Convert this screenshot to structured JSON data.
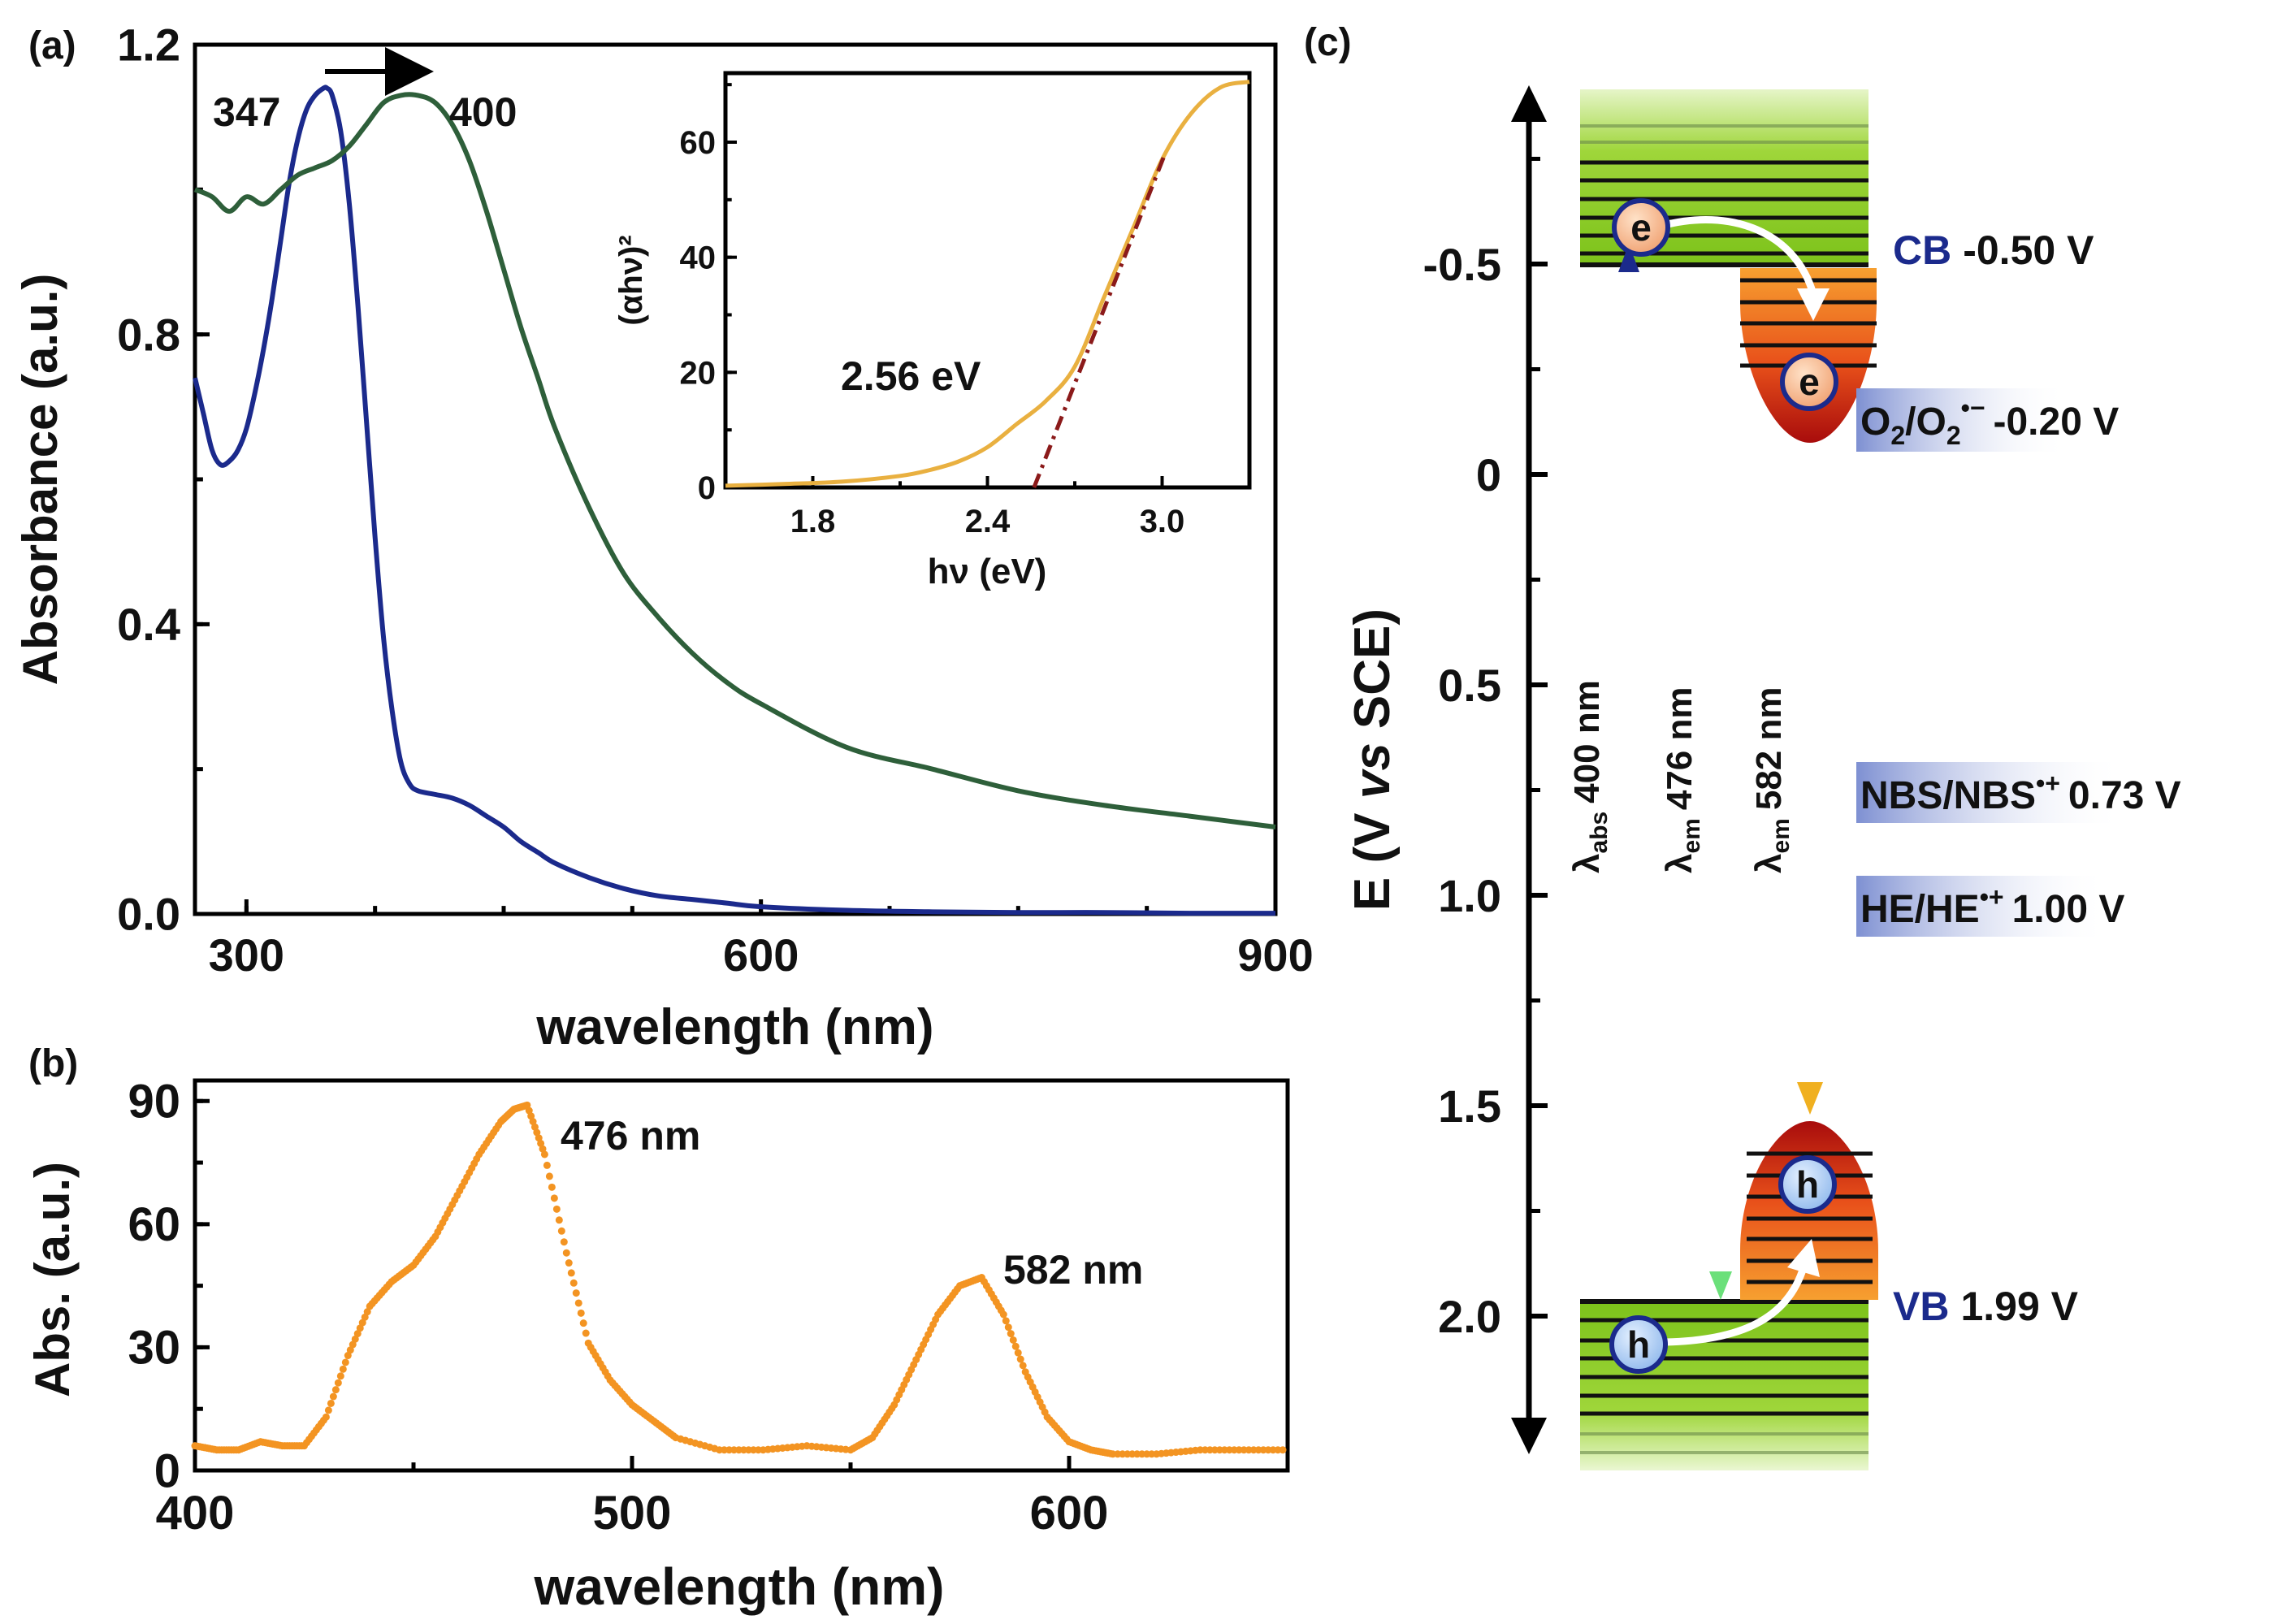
{
  "colors": {
    "blue": "#1b2a8c",
    "green": "#2e5f3a",
    "orange": "#f39422",
    "inset_curve": "#e9b040",
    "tangent": "#8b1a1a",
    "band_green": "#8fcf28",
    "band_orange": "#e8641c",
    "band_red": "#b01010",
    "label_blue": "#1b2a8c",
    "potential_fill": "#8fa0d8"
  },
  "chart_data": [
    {
      "id": "a",
      "panel_label": "(a)",
      "type": "line",
      "xlabel": "wavelength (nm)",
      "ylabel": "Absorbance (a.u.)",
      "xlim": [
        270,
        900
      ],
      "ylim": [
        0,
        1.2
      ],
      "xticks": [
        300,
        600,
        900
      ],
      "xtick_labels": [
        "300",
        "600",
        "900"
      ],
      "yticks": [
        0,
        0.4,
        0.8,
        1.2
      ],
      "ytick_labels": [
        "0.0",
        "0.4",
        "0.8",
        "1.2"
      ],
      "annotations": {
        "peak_left": "347",
        "peak_right": "400"
      },
      "series": [
        {
          "name": "blue",
          "color_key": "blue",
          "x": [
            270,
            275,
            280,
            285,
            290,
            295,
            300,
            305,
            310,
            315,
            320,
            325,
            330,
            335,
            340,
            345,
            347,
            350,
            355,
            360,
            365,
            370,
            375,
            380,
            385,
            390,
            395,
            400,
            410,
            420,
            430,
            440,
            450,
            460,
            470,
            480,
            500,
            520,
            540,
            560,
            580,
            600,
            650,
            700,
            750,
            800,
            850,
            900
          ],
          "y": [
            0.74,
            0.69,
            0.64,
            0.62,
            0.625,
            0.64,
            0.67,
            0.72,
            0.78,
            0.85,
            0.93,
            1.01,
            1.07,
            1.11,
            1.13,
            1.14,
            1.14,
            1.13,
            1.08,
            0.98,
            0.84,
            0.68,
            0.52,
            0.38,
            0.28,
            0.21,
            0.18,
            0.17,
            0.165,
            0.16,
            0.15,
            0.135,
            0.12,
            0.1,
            0.085,
            0.07,
            0.05,
            0.035,
            0.025,
            0.02,
            0.015,
            0.01,
            0.005,
            0.003,
            0.002,
            0.002,
            0.001,
            0.001
          ]
        },
        {
          "name": "green",
          "color_key": "green",
          "x": [
            270,
            280,
            290,
            300,
            310,
            320,
            330,
            340,
            350,
            360,
            370,
            380,
            390,
            400,
            410,
            420,
            430,
            440,
            450,
            460,
            470,
            480,
            500,
            520,
            540,
            560,
            580,
            600,
            650,
            700,
            750,
            800,
            850,
            900
          ],
          "y": [
            1.0,
            0.99,
            0.97,
            0.99,
            0.98,
            1.0,
            1.02,
            1.03,
            1.04,
            1.06,
            1.09,
            1.12,
            1.13,
            1.13,
            1.12,
            1.09,
            1.04,
            0.97,
            0.89,
            0.81,
            0.74,
            0.67,
            0.56,
            0.47,
            0.41,
            0.36,
            0.32,
            0.29,
            0.23,
            0.2,
            0.17,
            0.15,
            0.135,
            0.12
          ]
        }
      ]
    },
    {
      "id": "a-inset",
      "type": "line",
      "xlabel": "hν (eV)",
      "ylabel": "(αhν)²",
      "xlim": [
        1.5,
        3.3
      ],
      "ylim": [
        0,
        72
      ],
      "xticks": [
        1.8,
        2.4,
        3.0
      ],
      "xtick_labels": [
        "1.8",
        "2.4",
        "3.0"
      ],
      "yticks": [
        0,
        20,
        40,
        60
      ],
      "ytick_labels": [
        "0",
        "20",
        "40",
        "60"
      ],
      "annotations": {
        "band_gap": "2.56 eV"
      },
      "tangent": {
        "x": [
          2.56,
          3.01
        ],
        "y": [
          0,
          58
        ]
      },
      "series": [
        {
          "name": "tauc",
          "color_key": "inset_curve",
          "x": [
            1.5,
            1.7,
            1.9,
            2.1,
            2.2,
            2.3,
            2.4,
            2.5,
            2.6,
            2.7,
            2.8,
            2.9,
            3.0,
            3.1,
            3.2,
            3.3
          ],
          "y": [
            0.3,
            0.6,
            1.0,
            2.0,
            3.0,
            4.5,
            7.0,
            11.0,
            15.0,
            21.0,
            33.0,
            45.0,
            57.0,
            65.0,
            69.5,
            70.5
          ]
        }
      ]
    },
    {
      "id": "b",
      "panel_label": "(b)",
      "type": "scatter",
      "xlabel": "wavelength (nm)",
      "ylabel": "Abs. (a.u.)",
      "xlim": [
        400,
        650
      ],
      "ylim": [
        0,
        95
      ],
      "xticks": [
        400,
        500,
        600
      ],
      "xtick_labels": [
        "400",
        "500",
        "600"
      ],
      "yticks": [
        0,
        30,
        60,
        90
      ],
      "ytick_labels": [
        "0",
        "30",
        "60",
        "90"
      ],
      "annotations": {
        "peak1": "476 nm",
        "peak2": "582 nm"
      },
      "series": [
        {
          "name": "emission",
          "color_key": "orange",
          "x": [
            400,
            405,
            410,
            415,
            420,
            425,
            430,
            435,
            440,
            445,
            450,
            455,
            460,
            465,
            470,
            473,
            476,
            480,
            485,
            490,
            495,
            500,
            505,
            510,
            520,
            530,
            540,
            550,
            555,
            560,
            565,
            570,
            575,
            580,
            585,
            590,
            595,
            600,
            605,
            610,
            620,
            630,
            640,
            650
          ],
          "y": [
            6,
            5,
            5,
            7,
            6,
            6,
            13,
            28,
            40,
            46,
            50,
            57,
            67,
            77,
            85,
            88,
            89,
            77,
            53,
            31,
            22,
            16,
            12,
            8,
            5,
            5,
            6,
            5,
            8,
            16,
            27,
            38,
            45,
            47,
            38,
            24,
            13,
            7,
            5,
            4,
            4,
            5,
            5,
            5
          ]
        }
      ]
    },
    {
      "id": "c",
      "panel_label": "(c)",
      "type": "diagram",
      "ylabel": "E (V vs SCE)",
      "ylabel_parts": [
        "E (V ",
        "vs",
        " SCE)"
      ],
      "ylim": [
        -1.0,
        2.4
      ],
      "yticks": [
        -0.5,
        0,
        0.5,
        1.0,
        1.5,
        2.0
      ],
      "ytick_labels": [
        "-0.5",
        "0",
        "0.5",
        "1.0",
        "1.5",
        "2.0"
      ],
      "levels": [
        {
          "label": "CB",
          "value": -0.5,
          "value_text": "-0.50 V"
        },
        {
          "label": "VB",
          "value": 1.99,
          "value_text": "1.99 V"
        }
      ],
      "potentials": [
        {
          "main": "O",
          "sub1": "2",
          "mid": "/O",
          "sub2": "2",
          "sup": "•−",
          "value_text": "-0.20 V",
          "value": -0.2
        },
        {
          "main": "NBS/NBS",
          "sup": "•+",
          "value_text": "0.73 V",
          "value": 0.73
        },
        {
          "main": "HE/HE",
          "sup": "•+",
          "value_text": "1.00 V",
          "value": 1.0
        }
      ],
      "transitions": [
        {
          "symbol": "λ",
          "sub": "abs",
          "text": "400 nm"
        },
        {
          "symbol": "λ",
          "sub": "em",
          "text": "476 nm"
        },
        {
          "symbol": "λ",
          "sub": "em",
          "text": "582 nm"
        }
      ],
      "carriers": {
        "electron": "e",
        "hole": "h"
      }
    }
  ]
}
